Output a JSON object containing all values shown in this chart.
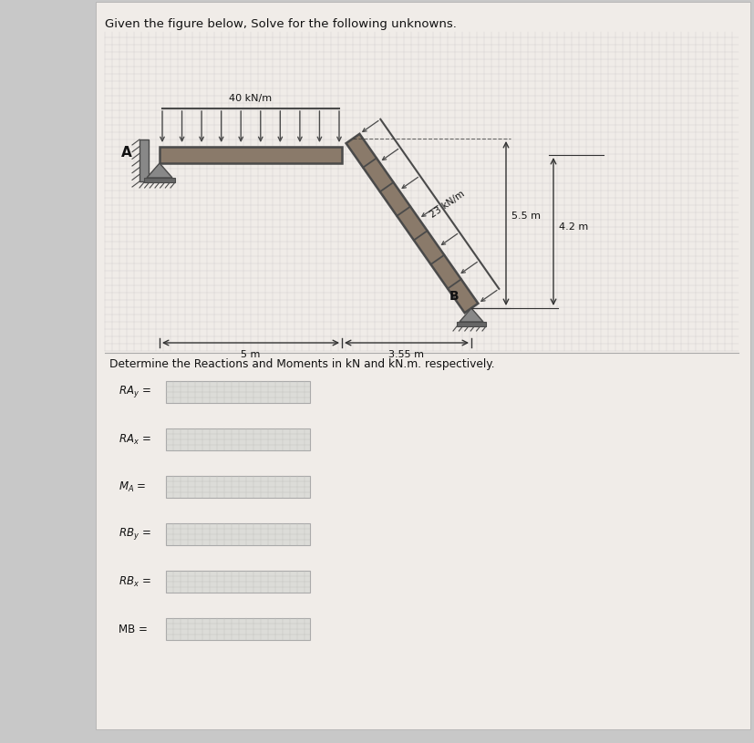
{
  "title": "Given the figure below, Solve for the following unknowns.",
  "bg_color": "#c8c8c8",
  "panel_color": "#d8d8d8",
  "grid_color": "#bbbbbb",
  "struct_color": "#4a4a4a",
  "struct_fill": "#8a7a6a",
  "load_arrow_color": "#333333",
  "dim_color": "#333333",
  "text_color": "#111111",
  "dist_load_label": "40 kN/m",
  "dist_load2_label": "23 kN/m",
  "dim_5m": "5 m",
  "dim_355m": "3.55 m",
  "dim_55m": "5.5 m",
  "dim_42m": "4.2 m",
  "label_A": "A",
  "label_B": "B",
  "instruction": "Determine the Reactions and Moments in kN and kN.m. respectively.",
  "field_labels": [
    "RAₑ =",
    "RAₓ =",
    "Mₐ =",
    "RBₑ =",
    "RBₓ =",
    "MB ="
  ],
  "field_labels_tex": [
    "$RA_y$ =",
    "$RA_x$ =",
    "$M_A$ =",
    "$RB_y$ =",
    "$RB_x$ =",
    "$MB$ ="
  ]
}
